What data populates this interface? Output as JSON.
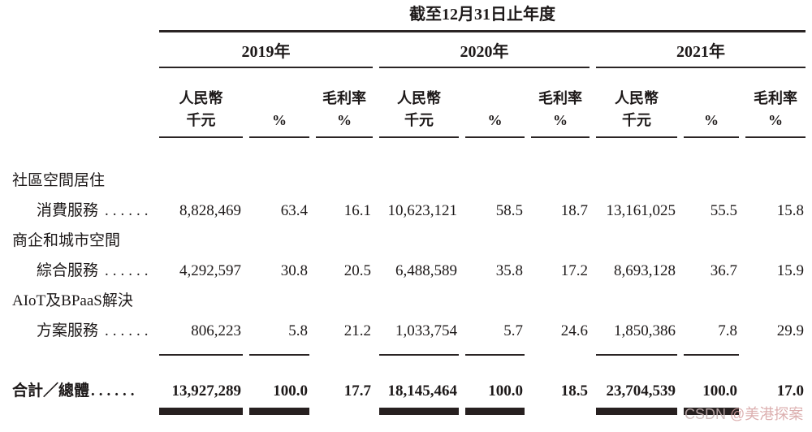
{
  "title": "截至12月31日止年度",
  "years": [
    "2019年",
    "2020年",
    "2021年"
  ],
  "columns": {
    "rmb_line1": "人民幣",
    "rmb_line2": "千元",
    "pct": "%",
    "gm_line1": "毛利率",
    "gm_line2": "%"
  },
  "rows": [
    {
      "label_line1": "社區空間居住",
      "label_line2": "消費服務",
      "dots": "......",
      "values": [
        "8,828,469",
        "63.4",
        "16.1",
        "10,623,121",
        "58.5",
        "18.7",
        "13,161,025",
        "55.5",
        "15.8"
      ]
    },
    {
      "label_line1": "商企和城市空間",
      "label_line2": "綜合服務",
      "dots": "......",
      "values": [
        "4,292,597",
        "30.8",
        "20.5",
        "6,488,589",
        "35.8",
        "17.2",
        "8,693,128",
        "36.7",
        "15.9"
      ]
    },
    {
      "label_line1": "AIoT及BPaaS解決",
      "label_line2": "方案服務",
      "dots": "......",
      "values": [
        "806,223",
        "5.8",
        "21.2",
        "1,033,754",
        "5.7",
        "24.6",
        "1,850,386",
        "7.8",
        "29.9"
      ]
    }
  ],
  "total": {
    "label": "合計／總體",
    "dots": "......",
    "values": [
      "13,927,289",
      "100.0",
      "17.7",
      "18,145,464",
      "100.0",
      "18.5",
      "23,704,539",
      "100.0",
      "17.0"
    ]
  },
  "watermark": {
    "prefix": "CSDN ",
    "handle": "@美港探案"
  },
  "colors": {
    "text": "#1d1919",
    "rule": "#2a2424",
    "bar": "#272020",
    "wm_prefix": "#c7b5b5",
    "wm_handle": "#d6a2a2"
  }
}
